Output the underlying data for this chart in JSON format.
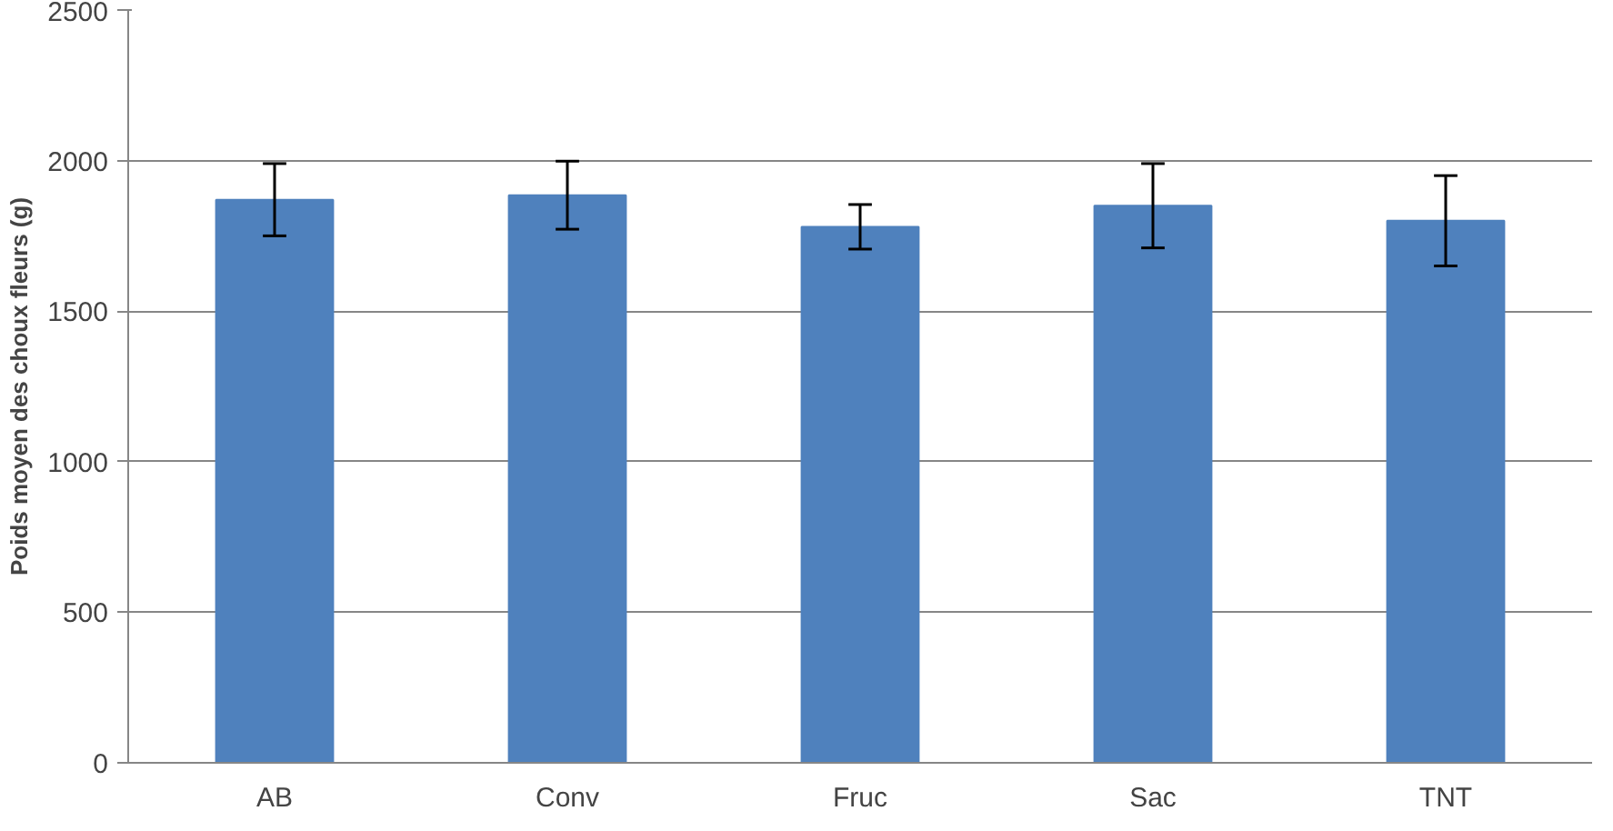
{
  "chart_data": {
    "type": "bar",
    "ylabel": "Poids moyen des choux fleurs (g)",
    "categories": [
      "AB",
      "Conv",
      "Fruc",
      "Sac",
      "TNT"
    ],
    "values": [
      1870,
      1885,
      1780,
      1850,
      1800
    ],
    "errors": [
      120,
      113,
      74,
      140,
      150
    ],
    "color": "#4f81bd",
    "ylim": [
      0,
      2500
    ],
    "yticks": [
      0,
      500,
      1000,
      1500,
      2000,
      2500
    ],
    "grid": "y"
  }
}
